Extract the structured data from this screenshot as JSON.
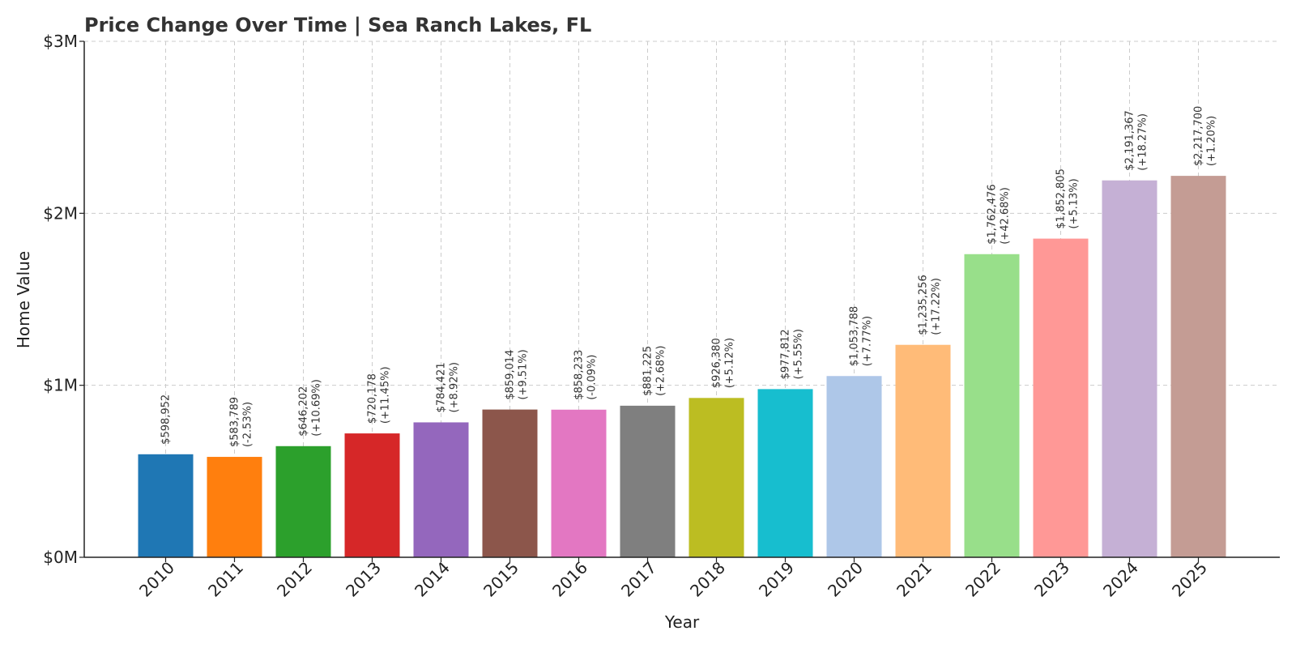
{
  "chart_data": {
    "type": "bar",
    "title": "Price Change Over Time | Sea Ranch Lakes, FL",
    "xlabel": "Year",
    "ylabel": "Home Value",
    "categories": [
      "2010",
      "2011",
      "2012",
      "2013",
      "2014",
      "2015",
      "2016",
      "2017",
      "2018",
      "2019",
      "2020",
      "2021",
      "2022",
      "2023",
      "2024",
      "2025"
    ],
    "values": [
      598952,
      583789,
      646202,
      720178,
      784421,
      859014,
      858233,
      881225,
      926380,
      977812,
      1053788,
      1235256,
      1762476,
      1852805,
      2191367,
      2217700
    ],
    "value_labels": [
      "$598,952",
      "$583,789",
      "$646,202",
      "$720,178",
      "$784,421",
      "$859,014",
      "$858,233",
      "$881,225",
      "$926,380",
      "$977,812",
      "$1,053,788",
      "$1,235,256",
      "$1,762,476",
      "$1,852,805",
      "$2,191,367",
      "$2,217,700"
    ],
    "change_labels": [
      "",
      "(-2.53%)",
      "(+10.69%)",
      "(+11.45%)",
      "(+8.92%)",
      "(+9.51%)",
      "(-0.09%)",
      "(+2.68%)",
      "(+5.12%)",
      "(+5.55%)",
      "(+7.77%)",
      "(+17.22%)",
      "(+42.68%)",
      "(+5.13%)",
      "(+18.27%)",
      "(+1.20%)"
    ],
    "colors": [
      "#1f77b4",
      "#ff7f0e",
      "#2ca02c",
      "#d62728",
      "#9467bd",
      "#8c564b",
      "#e377c2",
      "#7f7f7f",
      "#bcbd22",
      "#17becf",
      "#aec7e8",
      "#ffbb78",
      "#98df8a",
      "#ff9896",
      "#c5b0d5",
      "#c49c94"
    ],
    "ylim": [
      0,
      3000000
    ],
    "yticks": [
      0,
      1000000,
      2000000,
      3000000
    ],
    "ytick_labels": [
      "$0M",
      "$1M",
      "$2M",
      "$3M"
    ],
    "grid": true
  }
}
